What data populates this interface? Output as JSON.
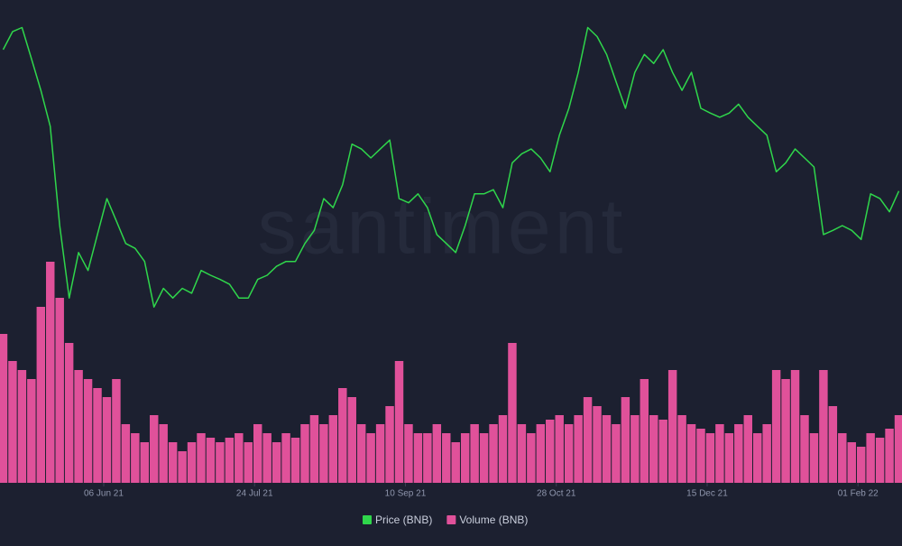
{
  "chart_data": {
    "type": "line-bar",
    "watermark": "santiment",
    "x": [
      "2021-05-05",
      "2021-05-08",
      "2021-05-11",
      "2021-05-14",
      "2021-05-17",
      "2021-05-20",
      "2021-05-23",
      "2021-05-26",
      "2021-05-29",
      "2021-06-01",
      "2021-06-04",
      "2021-06-07",
      "2021-06-10",
      "2021-06-13",
      "2021-06-16",
      "2021-06-19",
      "2021-06-22",
      "2021-06-25",
      "2021-06-28",
      "2021-07-01",
      "2021-07-04",
      "2021-07-07",
      "2021-07-10",
      "2021-07-13",
      "2021-07-16",
      "2021-07-19",
      "2021-07-22",
      "2021-07-25",
      "2021-07-28",
      "2021-07-31",
      "2021-08-03",
      "2021-08-06",
      "2021-08-09",
      "2021-08-12",
      "2021-08-15",
      "2021-08-18",
      "2021-08-21",
      "2021-08-24",
      "2021-08-27",
      "2021-08-30",
      "2021-09-02",
      "2021-09-05",
      "2021-09-08",
      "2021-09-11",
      "2021-09-14",
      "2021-09-17",
      "2021-09-20",
      "2021-09-23",
      "2021-09-26",
      "2021-09-29",
      "2021-10-02",
      "2021-10-05",
      "2021-10-08",
      "2021-10-11",
      "2021-10-14",
      "2021-10-17",
      "2021-10-20",
      "2021-10-23",
      "2021-10-26",
      "2021-10-29",
      "2021-11-01",
      "2021-11-04",
      "2021-11-07",
      "2021-11-10",
      "2021-11-13",
      "2021-11-16",
      "2021-11-19",
      "2021-11-22",
      "2021-11-25",
      "2021-11-28",
      "2021-12-01",
      "2021-12-04",
      "2021-12-07",
      "2021-12-10",
      "2021-12-13",
      "2021-12-16",
      "2021-12-19",
      "2021-12-22",
      "2021-12-25",
      "2021-12-28",
      "2021-12-31",
      "2022-01-03",
      "2022-01-06",
      "2022-01-09",
      "2022-01-12",
      "2022-01-15",
      "2022-01-18",
      "2022-01-21",
      "2022-01-24",
      "2022-01-27",
      "2022-01-30",
      "2022-02-02",
      "2022-02-05",
      "2022-02-08",
      "2022-02-11",
      "2022-02-14"
    ],
    "xlim": [
      "2021-05-04",
      "2022-02-15"
    ],
    "xticks": [
      {
        "value": "2021-06-06",
        "label": "06 Jun 21"
      },
      {
        "value": "2021-07-24",
        "label": "24 Jul 21"
      },
      {
        "value": "2021-09-10",
        "label": "10 Sep 21"
      },
      {
        "value": "2021-10-28",
        "label": "28 Oct 21"
      },
      {
        "value": "2021-12-15",
        "label": "15 Dec 21"
      },
      {
        "value": "2022-02-01",
        "label": "01 Feb 22"
      }
    ],
    "ylim": [
      200,
      680
    ],
    "y2lim": [
      0,
      10000000
    ],
    "series": [
      {
        "name": "Price (BNB)",
        "color": "#2fd64b",
        "type": "line",
        "values": [
          612,
          638,
          644,
          599,
          553,
          501,
          357,
          252,
          318,
          292,
          344,
          396,
          364,
          331,
          324,
          305,
          239,
          266,
          252,
          266,
          259,
          292,
          285,
          279,
          272,
          252,
          252,
          279,
          285,
          298,
          305,
          305,
          331,
          350,
          396,
          383,
          416,
          475,
          468,
          455,
          468,
          481,
          396,
          390,
          403,
          383,
          344,
          331,
          318,
          357,
          403,
          403,
          409,
          383,
          448,
          461,
          468,
          455,
          435,
          488,
          527,
          579,
          644,
          631,
          605,
          566,
          527,
          579,
          605,
          592,
          612,
          579,
          553,
          579,
          527,
          520,
          514,
          520,
          533,
          514,
          501,
          488,
          435,
          448,
          468,
          455,
          442,
          344,
          350,
          357,
          350,
          337,
          403,
          396,
          377,
          407
        ]
      },
      {
        "name": "Volume (BNB)",
        "color": "#e0519a",
        "type": "bar",
        "axis": "y2",
        "values": [
          6600000,
          5400000,
          5000000,
          4600000,
          7800000,
          9800000,
          8200000,
          6200000,
          5000000,
          4600000,
          4200000,
          3800000,
          4600000,
          2600000,
          2200000,
          1800000,
          3000000,
          2600000,
          1800000,
          1400000,
          1800000,
          2200000,
          2000000,
          1800000,
          2000000,
          2200000,
          1800000,
          2600000,
          2200000,
          1800000,
          2200000,
          2000000,
          2600000,
          3000000,
          2600000,
          3000000,
          4200000,
          3800000,
          2600000,
          2200000,
          2600000,
          3400000,
          5400000,
          2600000,
          2200000,
          2200000,
          2600000,
          2200000,
          1800000,
          2200000,
          2600000,
          2200000,
          2600000,
          3000000,
          6200000,
          2600000,
          2200000,
          2600000,
          2800000,
          3000000,
          2600000,
          3000000,
          3800000,
          3400000,
          3000000,
          2600000,
          3800000,
          3000000,
          4600000,
          3000000,
          2800000,
          5000000,
          3000000,
          2600000,
          2400000,
          2200000,
          2600000,
          2200000,
          2600000,
          3000000,
          2200000,
          2600000,
          5000000,
          4600000,
          5000000,
          3000000,
          2200000,
          5000000,
          3400000,
          2200000,
          1800000,
          1600000,
          2200000,
          2000000,
          2400000,
          3000000
        ]
      }
    ]
  }
}
